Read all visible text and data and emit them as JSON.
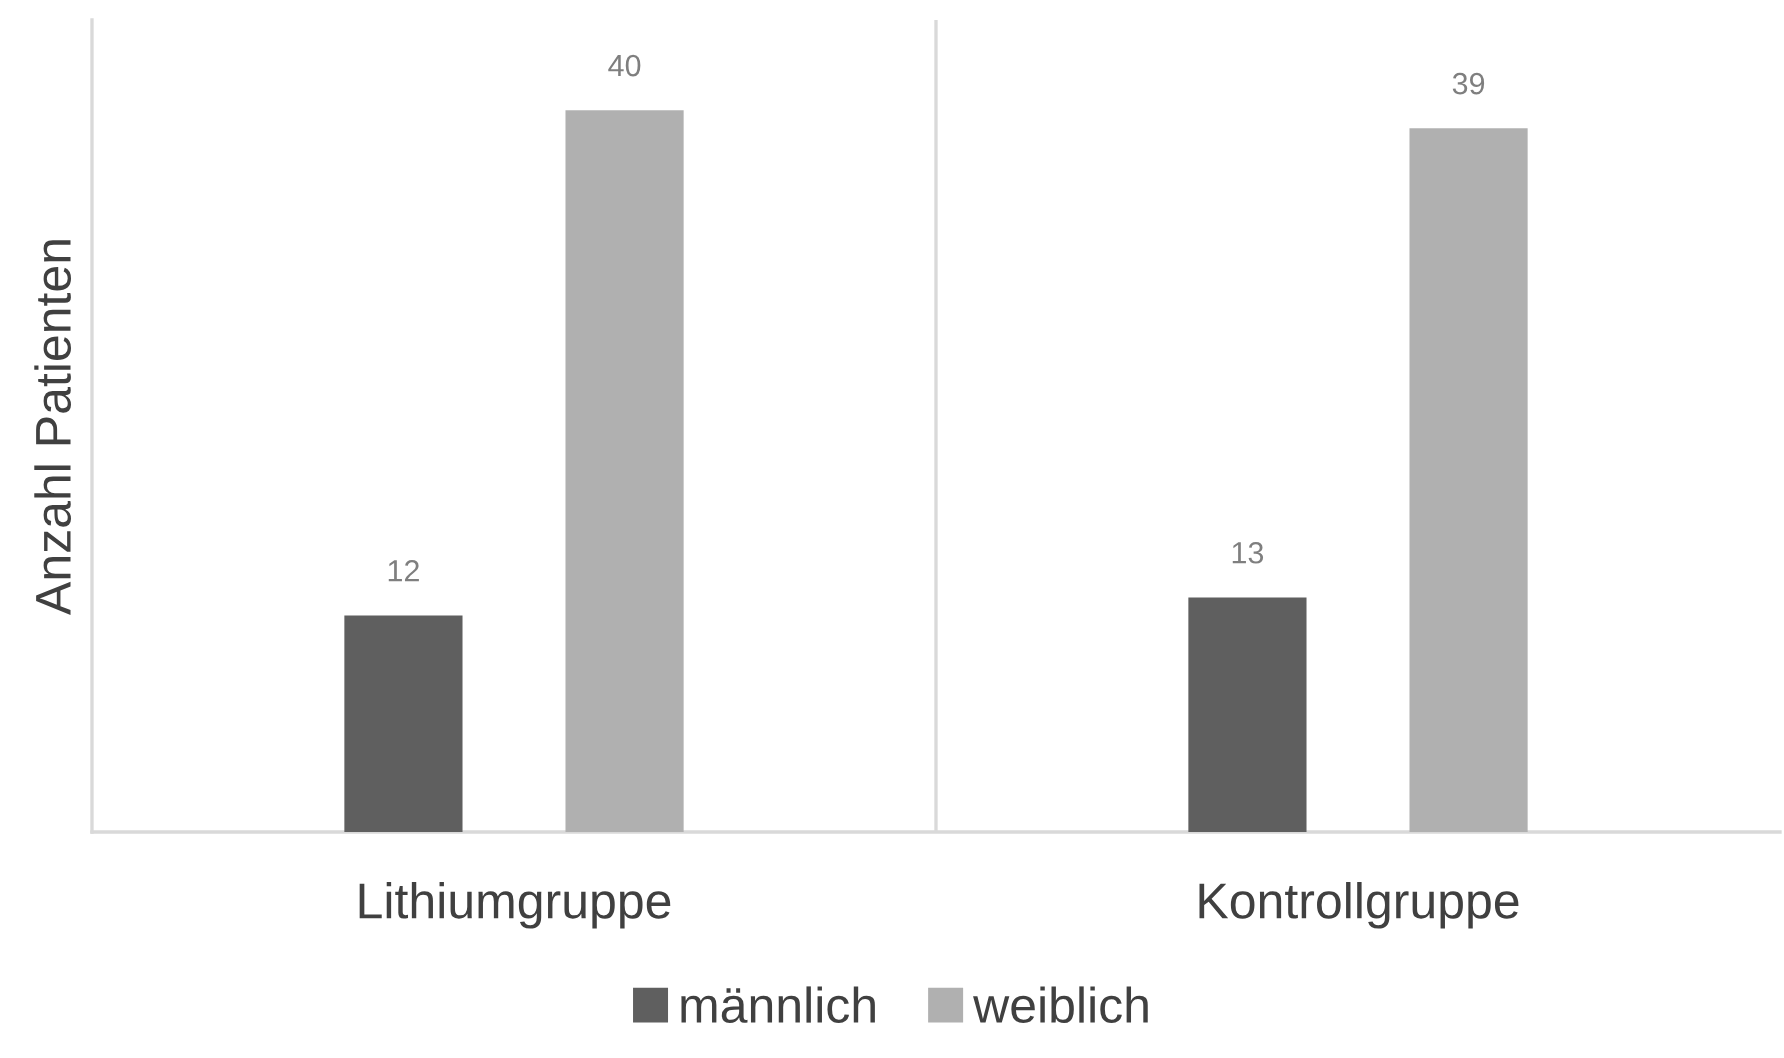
{
  "chart_data": {
    "type": "bar",
    "ylabel": "Anzahl Patienten",
    "categories": [
      "Lithiumgruppe",
      "Kontrollgruppe"
    ],
    "series": [
      {
        "name": "männlich",
        "color": "#5f5f5f",
        "values": [
          12,
          13
        ]
      },
      {
        "name": "weiblich",
        "color": "#b0b0b0",
        "values": [
          40,
          39
        ]
      }
    ],
    "ylim": [
      0,
      45
    ],
    "data_labels": true,
    "grid": "x",
    "legend": "bottom",
    "tick_labels": "x"
  }
}
